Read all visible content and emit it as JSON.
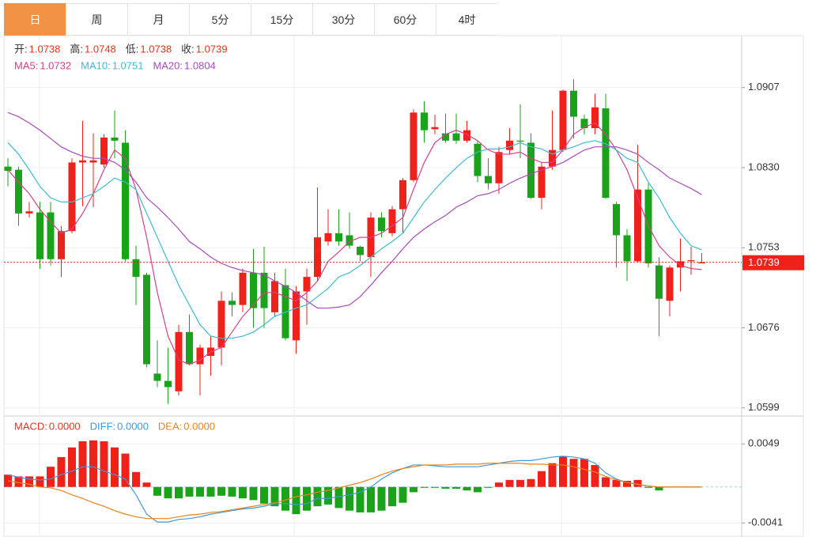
{
  "tabs": [
    "日",
    "周",
    "月",
    "5分",
    "15分",
    "30分",
    "60分",
    "4时"
  ],
  "active_tab": 0,
  "chart_data": [
    {
      "type": "candlestick",
      "legend_items": [
        {
          "label": "开:",
          "value": "1.0738"
        },
        {
          "label": "高:",
          "value": "1.0748"
        },
        {
          "label": "低:",
          "value": "1.0738"
        },
        {
          "label": "收:",
          "value": "1.0739"
        }
      ],
      "up_color": "#f0201a",
      "down_color": "#1aa31a",
      "open": [
        1.0831,
        1.0828,
        1.0786,
        1.0787,
        1.0787,
        1.0742,
        1.0769,
        1.0835,
        1.0835,
        1.0833,
        1.0859,
        1.0854,
        1.0742,
        1.0727,
        1.0632,
        1.0625,
        1.0615,
        1.0672,
        1.0641,
        1.0649,
        1.0657,
        1.0702,
        1.0698,
        1.0729,
        1.0729,
        1.0691,
        1.0717,
        1.0664,
        1.0711,
        1.0725,
        1.0759,
        1.0767,
        1.0765,
        1.0754,
        1.0744,
        1.0782,
        1.0767,
        1.079,
        1.0818,
        1.0883,
        1.0867,
        1.0863,
        1.0863,
        1.0856,
        1.0853,
        1.0822,
        1.0815,
        1.0847,
        1.0856,
        1.0854,
        1.0801,
        1.0831,
        1.0847,
        1.0904,
        1.0877,
        1.0868,
        1.0887,
        1.0795,
        1.0765,
        1.074,
        1.0809,
        1.0736,
        1.0702,
        1.0734,
        1.074,
        1.0738
      ],
      "high": [
        1.0839,
        1.0831,
        1.0797,
        1.0797,
        1.0797,
        1.0774,
        1.0839,
        1.0875,
        1.0863,
        1.0862,
        1.0885,
        1.0866,
        1.0755,
        1.0729,
        1.0664,
        1.0657,
        1.0679,
        1.0689,
        1.066,
        1.0668,
        1.0711,
        1.071,
        1.0733,
        1.0752,
        1.0754,
        1.0729,
        1.0733,
        1.0716,
        1.0733,
        1.0811,
        1.079,
        1.079,
        1.0787,
        1.0755,
        1.0787,
        1.0787,
        1.0793,
        1.082,
        1.0886,
        1.0894,
        1.0881,
        1.0882,
        1.0882,
        1.0875,
        1.0856,
        1.0839,
        1.085,
        1.0868,
        1.0891,
        1.0863,
        1.0835,
        1.0885,
        1.0905,
        1.0915,
        1.0881,
        1.0901,
        1.0901,
        1.0797,
        1.0771,
        1.0852,
        1.0815,
        1.0744,
        1.0736,
        1.0762,
        1.0754,
        1.0748
      ],
      "low": [
        1.0812,
        1.0774,
        1.0782,
        1.0733,
        1.0736,
        1.0725,
        1.0767,
        1.0793,
        1.0792,
        1.083,
        1.0839,
        1.074,
        1.0698,
        1.0638,
        1.0619,
        1.0603,
        1.0611,
        1.064,
        1.0611,
        1.063,
        1.064,
        1.0687,
        1.0691,
        1.0676,
        1.0676,
        1.0687,
        1.0664,
        1.0651,
        1.0679,
        1.0721,
        1.0755,
        1.0755,
        1.0752,
        1.074,
        1.0725,
        1.0763,
        1.0764,
        1.0767,
        1.0816,
        1.0854,
        1.0862,
        1.0854,
        1.0853,
        1.0854,
        1.0816,
        1.0809,
        1.0805,
        1.0843,
        1.0839,
        1.08,
        1.079,
        1.0828,
        1.0845,
        1.0858,
        1.0862,
        1.0862,
        1.08,
        1.0734,
        1.0721,
        1.0739,
        1.0734,
        1.0668,
        1.0687,
        1.0711,
        1.0727,
        1.0738
      ],
      "close": [
        1.0827,
        1.0786,
        1.0788,
        1.0742,
        1.0742,
        1.0769,
        1.0835,
        1.0837,
        1.0837,
        1.0859,
        1.0856,
        1.0742,
        1.0725,
        1.0641,
        1.0625,
        1.0619,
        1.0672,
        1.0641,
        1.0657,
        1.0657,
        1.0702,
        1.0698,
        1.0729,
        1.0695,
        1.0695,
        1.0721,
        1.0666,
        1.0711,
        1.0725,
        1.0763,
        1.0767,
        1.0759,
        1.0755,
        1.0746,
        1.0782,
        1.0769,
        1.079,
        1.0818,
        1.0883,
        1.0866,
        1.0869,
        1.0856,
        1.0856,
        1.0866,
        1.0822,
        1.0815,
        1.0845,
        1.0856,
        1.0855,
        1.0801,
        1.0831,
        1.0847,
        1.0904,
        1.0879,
        1.0868,
        1.0888,
        1.0801,
        1.0765,
        1.074,
        1.0809,
        1.0738,
        1.0704,
        1.0734,
        1.074,
        1.0741,
        1.0739
      ],
      "series": [
        {
          "name": "MA5:",
          "legend_value": "1.0732",
          "color": "#d6408a",
          "values": [
            1.0828,
            1.0816,
            1.0805,
            1.079,
            1.0778,
            1.0767,
            1.0771,
            1.0786,
            1.0805,
            1.0828,
            1.0847,
            1.0839,
            1.0809,
            1.0763,
            1.071,
            1.0668,
            1.0645,
            1.0641,
            1.0645,
            1.0653,
            1.0657,
            1.0672,
            1.0687,
            1.0698,
            1.071,
            1.071,
            1.0706,
            1.0702,
            1.071,
            1.0721,
            1.074,
            1.0749,
            1.0759,
            1.0763,
            1.0763,
            1.0767,
            1.0774,
            1.0782,
            1.0809,
            1.0835,
            1.0854,
            1.0862,
            1.0866,
            1.0862,
            1.0856,
            1.0847,
            1.0843,
            1.0843,
            1.0845,
            1.0839,
            1.0835,
            1.0835,
            1.0847,
            1.0862,
            1.0869,
            1.0873,
            1.0862,
            1.0847,
            1.0828,
            1.0801,
            1.0774,
            1.0755,
            1.0744,
            1.0736,
            1.0733,
            1.0732
          ]
        },
        {
          "name": "MA10:",
          "legend_value": "1.0751",
          "color": "#3cbcd0",
          "values": [
            1.0854,
            1.0843,
            1.0828,
            1.0812,
            1.0801,
            1.0797,
            1.0797,
            1.0801,
            1.0805,
            1.0812,
            1.082,
            1.0816,
            1.0809,
            1.0786,
            1.0763,
            1.074,
            1.0717,
            1.0698,
            1.0679,
            1.0668,
            1.0666,
            1.0666,
            1.0668,
            1.0672,
            1.0679,
            1.0687,
            1.0691,
            1.0695,
            1.0698,
            1.0706,
            1.0714,
            1.0725,
            1.0729,
            1.0736,
            1.0744,
            1.0752,
            1.0759,
            1.0767,
            1.0782,
            1.0797,
            1.0809,
            1.082,
            1.083,
            1.0839,
            1.0845,
            1.0848,
            1.0848,
            1.085,
            1.0854,
            1.085,
            1.0848,
            1.0843,
            1.0847,
            1.085,
            1.0854,
            1.0856,
            1.0853,
            1.0847,
            1.0839,
            1.0835,
            1.0816,
            1.0801,
            1.0782,
            1.0767,
            1.0755,
            1.0751
          ]
        },
        {
          "name": "MA20:",
          "legend_value": "1.0804",
          "color": "#a64cb8",
          "values": [
            1.0883,
            1.0879,
            1.0873,
            1.0866,
            1.0858,
            1.085,
            1.0845,
            1.0841,
            1.0839,
            1.0839,
            1.0835,
            1.0828,
            1.0816,
            1.0801,
            1.0792,
            1.0782,
            1.0771,
            1.0759,
            1.0752,
            1.0744,
            1.0738,
            1.0734,
            1.0731,
            1.0729,
            1.0727,
            1.0721,
            1.0716,
            1.071,
            1.0702,
            1.0695,
            1.0695,
            1.0696,
            1.0698,
            1.0706,
            1.0717,
            1.0729,
            1.074,
            1.0752,
            1.0763,
            1.0771,
            1.0778,
            1.0784,
            1.0792,
            1.0797,
            1.0803,
            1.0805,
            1.0809,
            1.0815,
            1.082,
            1.0824,
            1.0828,
            1.0831,
            1.0835,
            1.0841,
            1.0847,
            1.085,
            1.085,
            1.085,
            1.0847,
            1.0843,
            1.0835,
            1.0828,
            1.082,
            1.0815,
            1.081,
            1.0804
          ]
        }
      ],
      "last_price": {
        "value": 1.0739,
        "color": "#f0201a"
      },
      "ylim": [
        1.0592,
        1.0957
      ],
      "yticks": [
        1.0599,
        1.0676,
        1.0753,
        {
          "value": 1.083,
          "label": "1.0830"
        },
        1.0907
      ],
      "grid": true
    },
    {
      "type": "macd",
      "bars": {
        "name": "MACD:",
        "legend_value": "0.0000",
        "color": "#e8341c",
        "up_color": "#f0201a",
        "down_color": "#1aa31a",
        "values": [
          0.0014,
          0.0012,
          0.0012,
          0.0012,
          0.0023,
          0.0034,
          0.0045,
          0.0052,
          0.0053,
          0.0052,
          0.0045,
          0.0038,
          0.0017,
          0.0005,
          -0.001,
          -0.0013,
          -0.0013,
          -0.0011,
          -0.0011,
          -0.0011,
          -0.001,
          -0.0011,
          -0.0013,
          -0.0015,
          -0.0019,
          -0.0022,
          -0.0027,
          -0.0031,
          -0.0027,
          -0.0022,
          -0.002,
          -0.0024,
          -0.0027,
          -0.0029,
          -0.0029,
          -0.0027,
          -0.0022,
          -0.0018,
          -0.0006,
          -0.0001,
          -0.0001,
          -0.0002,
          -0.0002,
          -0.0004,
          -0.0006,
          -0.0001,
          0.0005,
          0.0008,
          0.0008,
          0.0009,
          0.0018,
          0.0027,
          0.0035,
          0.0032,
          0.0032,
          0.0025,
          0.0011,
          0.0008,
          0.0007,
          0.0008,
          -0.0001,
          -0.0004,
          0,
          0,
          0,
          0
        ]
      },
      "series": [
        {
          "name": "DIFF:",
          "legend_value": "0.0000",
          "color": "#3d9ad9",
          "values": [
            0.0014,
            0.0011,
            0.0009,
            0.0008,
            0.0009,
            0.0014,
            0.0018,
            0.0023,
            0.0023,
            0.0018,
            0.0014,
            0.0009,
            -0.0009,
            -0.0031,
            -0.004,
            -0.004,
            -0.0037,
            -0.0036,
            -0.0034,
            -0.0031,
            -0.0029,
            -0.0027,
            -0.0025,
            -0.0024,
            -0.0022,
            -0.0019,
            -0.0019,
            -0.002,
            -0.0019,
            -0.0013,
            -0.0013,
            -0.0011,
            -0.0009,
            -0.0006,
            0,
            0.0009,
            0.0016,
            0.0021,
            0.0025,
            0.0025,
            0.0024,
            0.0023,
            0.0023,
            0.0023,
            0.0023,
            0.0025,
            0.0027,
            0.0029,
            0.003,
            0.003,
            0.0032,
            0.0034,
            0.0035,
            0.0034,
            0.0032,
            0.0027,
            0.0016,
            0.0009,
            0.0005,
            0.0003,
            0.0001,
            0,
            0,
            0,
            0,
            0
          ]
        },
        {
          "name": "DEA:",
          "legend_value": "0.0000",
          "color": "#e8841a",
          "values": [
            0.0007,
            0.0005,
            0.0003,
            0,
            -0.0001,
            -0.0004,
            -0.0009,
            -0.0013,
            -0.0018,
            -0.0022,
            -0.0027,
            -0.0031,
            -0.0034,
            -0.0036,
            -0.0036,
            -0.0036,
            -0.0034,
            -0.0032,
            -0.0031,
            -0.0029,
            -0.0028,
            -0.0026,
            -0.0024,
            -0.0022,
            -0.002,
            -0.0018,
            -0.0015,
            -0.0011,
            -0.0009,
            -0.0006,
            -0.0004,
            -0.0001,
            0.0002,
            0.0005,
            0.0009,
            0.0014,
            0.0018,
            0.0021,
            0.0023,
            0.0025,
            0.0025,
            0.0025,
            0.0026,
            0.0026,
            0.0026,
            0.0027,
            0.0027,
            0.0027,
            0.0027,
            0.0026,
            0.0026,
            0.0025,
            0.0025,
            0.0023,
            0.002,
            0.0017,
            0.0012,
            0.0008,
            0.0005,
            0.0003,
            0.0001,
            0,
            0,
            0,
            0,
            0
          ]
        }
      ],
      "ylim": [
        -0.0057,
        0.0079
      ],
      "yticks": [
        -0.0041,
        0.0049
      ],
      "grid": true
    }
  ]
}
